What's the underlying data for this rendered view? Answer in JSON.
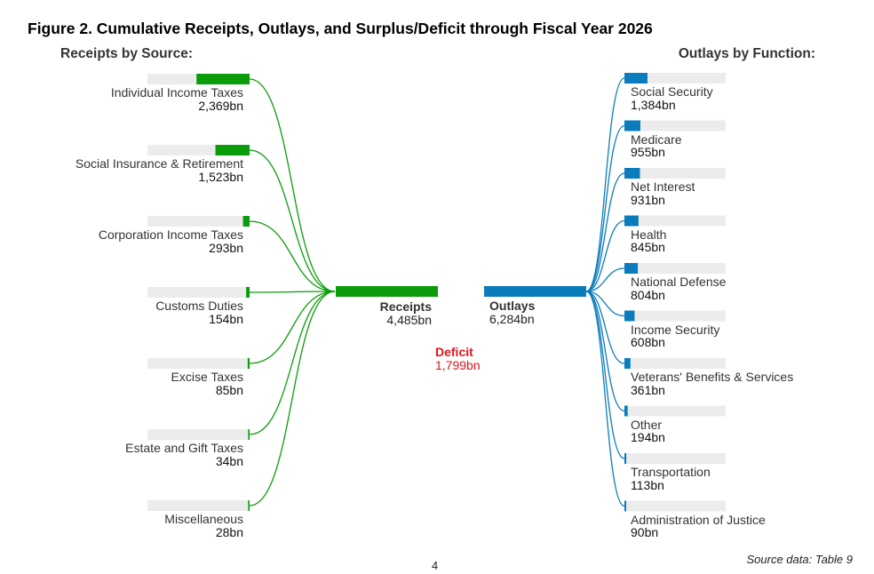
{
  "title": "Figure 2. Cumulative Receipts, Outlays, and Surplus/Deficit through Fiscal Year 2026",
  "left_header": "Receipts by Source:",
  "right_header": "Outlays by Function:",
  "colors": {
    "receipts": "#0a9c0a",
    "outlays": "#0a7cbc",
    "deficit": "#e0141c",
    "track": "#ececec"
  },
  "receipts_total": {
    "label": "Receipts",
    "value": "4,485bn"
  },
  "outlays_total": {
    "label": "Outlays",
    "value": "6,284bn"
  },
  "deficit": {
    "label": "Deficit",
    "value": "1,799bn"
  },
  "receipts": [
    {
      "name": "Individual Income Taxes",
      "value": "2,369bn",
      "amount": 2369
    },
    {
      "name": "Social Insurance & Retirement",
      "value": "1,523bn",
      "amount": 1523
    },
    {
      "name": "Corporation Income Taxes",
      "value": "293bn",
      "amount": 293
    },
    {
      "name": "Customs Duties",
      "value": "154bn",
      "amount": 154
    },
    {
      "name": "Excise Taxes",
      "value": "85bn",
      "amount": 85
    },
    {
      "name": "Estate and Gift Taxes",
      "value": "34bn",
      "amount": 34
    },
    {
      "name": "Miscellaneous",
      "value": "28bn",
      "amount": 28
    }
  ],
  "outlays": [
    {
      "name": "Social Security",
      "value": "1,384bn",
      "amount": 1384
    },
    {
      "name": "Medicare",
      "value": "955bn",
      "amount": 955
    },
    {
      "name": "Net Interest",
      "value": "931bn",
      "amount": 931
    },
    {
      "name": "Health",
      "value": "845bn",
      "amount": 845
    },
    {
      "name": "National Defense",
      "value": "804bn",
      "amount": 804
    },
    {
      "name": "Income Security",
      "value": "608bn",
      "amount": 608
    },
    {
      "name": "Veterans'  Benefits & Services",
      "value": "361bn",
      "amount": 361
    },
    {
      "name": "Other",
      "value": "194bn",
      "amount": 194
    },
    {
      "name": "Transportation",
      "value": "113bn",
      "amount": 113
    },
    {
      "name": "Administration of Justice",
      "value": "90bn",
      "amount": 90
    }
  ],
  "source_note": "Source data: Table 9",
  "page_number": "4"
}
